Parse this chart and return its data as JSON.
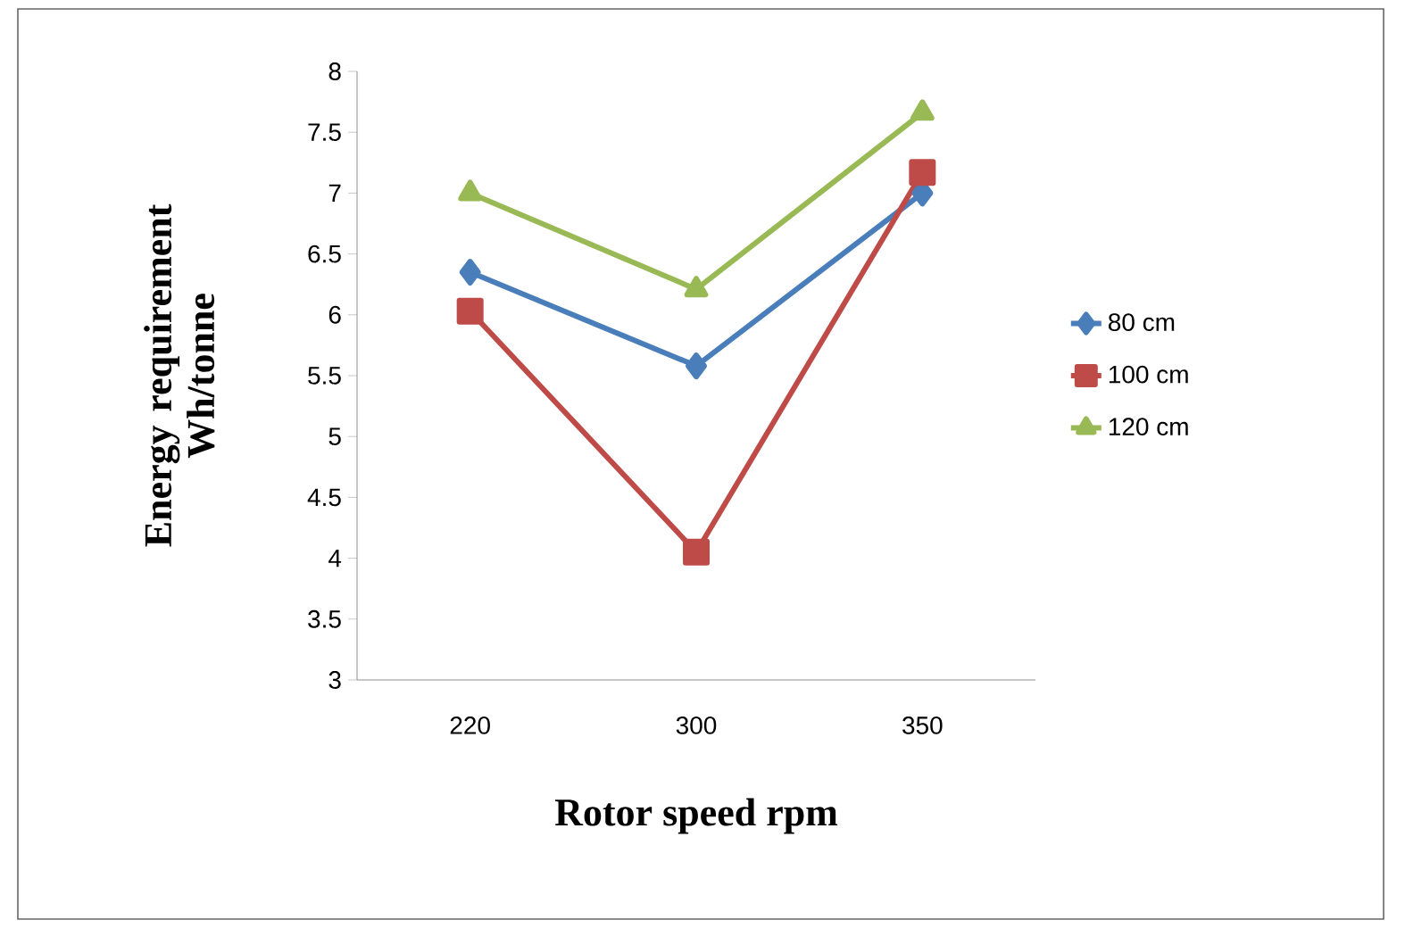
{
  "chart_data": {
    "type": "line",
    "xlabel": "Rotor speed rpm",
    "ylabel": "Energy requirement Wh/tonne",
    "categories": [
      "220",
      "300",
      "350"
    ],
    "series": [
      {
        "name": "80 cm",
        "color": "#4a7ebb",
        "marker": "diamond",
        "values": [
          6.35,
          5.58,
          7.0
        ]
      },
      {
        "name": "100 cm",
        "color": "#be4b48",
        "marker": "square",
        "values": [
          6.03,
          4.05,
          7.17
        ]
      },
      {
        "name": "120 cm",
        "color": "#98b954",
        "marker": "triangle",
        "values": [
          7.0,
          6.21,
          7.66
        ]
      }
    ],
    "ylim": [
      3,
      8
    ],
    "yticks": [
      3,
      3.5,
      4,
      4.5,
      5,
      5.5,
      6,
      6.5,
      7,
      7.5,
      8
    ],
    "grid": false,
    "legend": "right",
    "line_style": "solid"
  }
}
